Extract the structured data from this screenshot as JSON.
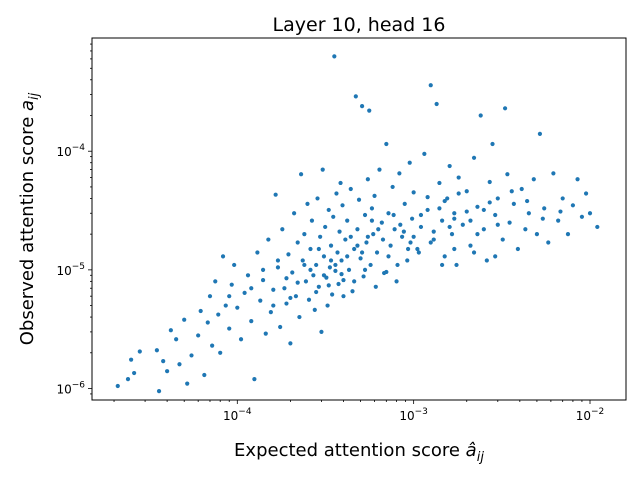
{
  "chart_data": {
    "type": "scatter",
    "title": "Layer 10, head 16",
    "xlabel": {
      "text": "Expected attention score ",
      "symbol": "â",
      "subscript": "ij"
    },
    "ylabel": {
      "text": "Observed attention score ",
      "symbol": "a",
      "subscript": "ij"
    },
    "xscale": "log",
    "yscale": "log",
    "xlim": [
      1.5e-05,
      0.016
    ],
    "ylim": [
      8e-07,
      0.0009
    ],
    "xticks": [
      {
        "value": 0.0001,
        "base": "10",
        "exp": "−4"
      },
      {
        "value": 0.001,
        "base": "10",
        "exp": "−3"
      },
      {
        "value": 0.01,
        "base": "10",
        "exp": "−2"
      }
    ],
    "yticks": [
      {
        "value": 1e-06,
        "base": "10",
        "exp": "−6"
      },
      {
        "value": 1e-05,
        "base": "10",
        "exp": "−5"
      },
      {
        "value": 0.0001,
        "base": "10",
        "exp": "−4"
      }
    ],
    "grid": false,
    "marker_color": "#1f77b4",
    "series": [
      {
        "points": [
          [
            2.1e-05,
            1.05e-06
          ],
          [
            2.4e-05,
            1.2e-06
          ],
          [
            2.5e-05,
            1.75e-06
          ],
          [
            2.6e-05,
            1.35e-06
          ],
          [
            2.8e-05,
            2.05e-06
          ],
          [
            3.5e-05,
            2.1e-06
          ],
          [
            3.6e-05,
            9.5e-07
          ],
          [
            3.8e-05,
            1.7e-06
          ],
          [
            4e-05,
            1.4e-06
          ],
          [
            4.2e-05,
            3.1e-06
          ],
          [
            4.5e-05,
            2.6e-06
          ],
          [
            4.7e-05,
            1.6e-06
          ],
          [
            5e-05,
            3.8e-06
          ],
          [
            5.2e-05,
            1.1e-06
          ],
          [
            5.5e-05,
            1.9e-06
          ],
          [
            6e-05,
            2.8e-06
          ],
          [
            6.2e-05,
            4.5e-06
          ],
          [
            6.5e-05,
            1.3e-06
          ],
          [
            6.8e-05,
            3.6e-06
          ],
          [
            7e-05,
            6e-06
          ],
          [
            7.2e-05,
            2.3e-06
          ],
          [
            7.5e-05,
            8e-06
          ],
          [
            7.8e-05,
            4.2e-06
          ],
          [
            8e-05,
            2e-06
          ],
          [
            8.3e-05,
            1.3e-05
          ],
          [
            8.6e-05,
            5e-06
          ],
          [
            9e-05,
            3.2e-06
          ],
          [
            9.3e-05,
            7.5e-06
          ],
          [
            9.6e-05,
            1.1e-05
          ],
          [
            0.0001,
            4.8e-06
          ],
          [
            0.000105,
            2.6e-06
          ],
          [
            0.00011,
            6.4e-06
          ],
          [
            0.000115,
            9e-06
          ],
          [
            0.00012,
            3.7e-06
          ],
          [
            0.000125,
            1.2e-06
          ],
          [
            0.00013,
            1.4e-05
          ],
          [
            0.000135,
            5.5e-06
          ],
          [
            0.00014,
            8.2e-06
          ],
          [
            0.000145,
            2.9e-06
          ],
          [
            0.00015,
            1.8e-05
          ],
          [
            0.000155,
            4.4e-06
          ],
          [
            0.00016,
            6.8e-06
          ],
          [
            0.000165,
            4.3e-05
          ],
          [
            0.00017,
            1.05e-05
          ],
          [
            0.000175,
            3.3e-06
          ],
          [
            0.00018,
            2.2e-05
          ],
          [
            0.000185,
            7e-06
          ],
          [
            0.00019,
            5.2e-06
          ],
          [
            0.000195,
            1.35e-05
          ],
          [
            0.0002,
            2.4e-06
          ],
          [
            0.000205,
            9.5e-06
          ],
          [
            0.00021,
            3e-05
          ],
          [
            0.000215,
            6e-06
          ],
          [
            0.00022,
            1.7e-05
          ],
          [
            0.000225,
            4e-06
          ],
          [
            0.00023,
            6.4e-05
          ],
          [
            0.000235,
            1.2e-05
          ],
          [
            0.00024,
            2e-05
          ],
          [
            0.000245,
            8e-06
          ],
          [
            0.00025,
            3.6e-05
          ],
          [
            0.000255,
            5.6e-06
          ],
          [
            0.00026,
            1.5e-05
          ],
          [
            0.000265,
            2.6e-05
          ],
          [
            0.00027,
            9e-06
          ],
          [
            0.000275,
            4.6e-06
          ],
          [
            0.00028,
            1.1e-05
          ],
          [
            0.000285,
            4e-05
          ],
          [
            0.00029,
            7.2e-06
          ],
          [
            0.000295,
            1.9e-05
          ],
          [
            0.0003,
            3e-06
          ],
          [
            0.000305,
            7e-05
          ],
          [
            0.00031,
            1.3e-05
          ],
          [
            0.000315,
            2.3e-05
          ],
          [
            0.00032,
            8.6e-06
          ],
          [
            0.000325,
            5e-06
          ],
          [
            0.00033,
            3.2e-05
          ],
          [
            0.000335,
            1.05e-05
          ],
          [
            0.00034,
            1.6e-05
          ],
          [
            0.000345,
            6.2e-06
          ],
          [
            0.00035,
            2.8e-05
          ],
          [
            0.000355,
            0.00063
          ],
          [
            0.00036,
            9.8e-06
          ],
          [
            0.000365,
            4.4e-05
          ],
          [
            0.00037,
            1.4e-05
          ],
          [
            0.000375,
            7.6e-06
          ],
          [
            0.00038,
            2.1e-05
          ],
          [
            0.000385,
            5.4e-05
          ],
          [
            0.00039,
            1.2e-05
          ],
          [
            0.000395,
            3.5e-05
          ],
          [
            0.0004,
            8.2e-06
          ],
          [
            0.00041,
            1.8e-05
          ],
          [
            0.00042,
            2.6e-05
          ],
          [
            0.00043,
            1e-05
          ],
          [
            0.00044,
            4.8e-05
          ],
          [
            0.00045,
            6.6e-06
          ],
          [
            0.00046,
            1.5e-05
          ],
          [
            0.00047,
            0.00029
          ],
          [
            0.00048,
            2.2e-05
          ],
          [
            0.00049,
            3.9e-05
          ],
          [
            0.0005,
            1.25e-05
          ],
          [
            0.00051,
            0.00024
          ],
          [
            0.00052,
            8.8e-06
          ],
          [
            0.00053,
            2.9e-05
          ],
          [
            0.00054,
            1.7e-05
          ],
          [
            0.00055,
            5.8e-05
          ],
          [
            0.00056,
            0.00022
          ],
          [
            0.00057,
            1.1e-05
          ],
          [
            0.00058,
            3.3e-05
          ],
          [
            0.00059,
            2e-05
          ],
          [
            0.0006,
            4.2e-05
          ],
          [
            0.00062,
            1.4e-05
          ],
          [
            0.00064,
            7e-05
          ],
          [
            0.00066,
            2.5e-05
          ],
          [
            0.00068,
            9.4e-06
          ],
          [
            0.0007,
            0.000115
          ],
          [
            0.00072,
            3e-05
          ],
          [
            0.00074,
            1.6e-05
          ],
          [
            0.00076,
            5e-05
          ],
          [
            0.00078,
            2.2e-05
          ],
          [
            0.0008,
            8e-06
          ],
          [
            0.00083,
            6.5e-05
          ],
          [
            0.00086,
            1.9e-05
          ],
          [
            0.00089,
            3.6e-05
          ],
          [
            0.00092,
            1.2e-05
          ],
          [
            0.00095,
            8e-05
          ],
          [
            0.00098,
            2.7e-05
          ],
          [
            0.001,
            4.5e-05
          ],
          [
            0.00105,
            1.5e-05
          ],
          [
            0.0011,
            2.3e-05
          ],
          [
            0.00115,
            9.5e-05
          ],
          [
            0.0012,
            3.2e-05
          ],
          [
            0.00125,
            0.00036
          ],
          [
            0.0013,
            1.8e-05
          ],
          [
            0.00135,
            0.00025
          ],
          [
            0.0014,
            5.4e-05
          ],
          [
            0.00145,
            2.6e-05
          ],
          [
            0.0015,
            1.3e-05
          ],
          [
            0.00155,
            4e-05
          ],
          [
            0.0016,
            7.5e-05
          ],
          [
            0.00165,
            2e-05
          ],
          [
            0.0017,
            3e-05
          ],
          [
            0.00175,
            1.1e-05
          ],
          [
            0.0018,
            6e-05
          ],
          [
            0.0019,
            2.4e-05
          ],
          [
            0.002,
            4.6e-05
          ],
          [
            0.0021,
            1.6e-05
          ],
          [
            0.0022,
            8.8e-05
          ],
          [
            0.0023,
            3.4e-05
          ],
          [
            0.0024,
            0.0002
          ],
          [
            0.0025,
            2.2e-05
          ],
          [
            0.0026,
            1.2e-05
          ],
          [
            0.0027,
            5.5e-05
          ],
          [
            0.0028,
            0.000115
          ],
          [
            0.0029,
            2.9e-05
          ],
          [
            0.003,
            4e-05
          ],
          [
            0.0032,
            1.8e-05
          ],
          [
            0.0033,
            0.00023
          ],
          [
            0.0034,
            6.4e-05
          ],
          [
            0.0035,
            2.5e-05
          ],
          [
            0.0037,
            3.6e-05
          ],
          [
            0.0039,
            1.5e-05
          ],
          [
            0.0041,
            4.8e-05
          ],
          [
            0.0043,
            2.2e-05
          ],
          [
            0.0045,
            3e-05
          ],
          [
            0.0048,
            5.8e-05
          ],
          [
            0.005,
            2e-05
          ],
          [
            0.0052,
            0.00014
          ],
          [
            0.0055,
            3.3e-05
          ],
          [
            0.0058,
            1.7e-05
          ],
          [
            0.0062,
            6.5e-05
          ],
          [
            0.0066,
            2.6e-05
          ],
          [
            0.007,
            4e-05
          ],
          [
            0.0075,
            2e-05
          ],
          [
            0.008,
            3.5e-05
          ],
          [
            0.0085,
            5.8e-05
          ],
          [
            0.009,
            2.8e-05
          ],
          [
            0.0095,
            4.4e-05
          ],
          [
            0.01,
            3e-05
          ],
          [
            0.011,
            2.3e-05
          ],
          [
            0.00022,
            7.8e-06
          ],
          [
            0.00026,
            1e-05
          ],
          [
            0.00031,
            9e-06
          ],
          [
            0.00036,
            1.1e-05
          ],
          [
            0.00042,
            1.3e-05
          ],
          [
            0.00048,
            1.6e-05
          ],
          [
            0.00055,
            1.9e-05
          ],
          [
            0.00063,
            2.2e-05
          ],
          [
            0.00072,
            1.3e-05
          ],
          [
            0.00084,
            2.4e-05
          ],
          [
            0.00096,
            1.7e-05
          ],
          [
            0.0011,
            2.9e-05
          ],
          [
            0.0013,
            2.1e-05
          ],
          [
            0.0015,
            3.8e-05
          ],
          [
            0.0017,
            2.7e-05
          ],
          [
            0.002,
            3.1e-05
          ],
          [
            0.0023,
            2e-05
          ],
          [
            0.0027,
            3.7e-05
          ],
          [
            0.00012,
            7e-06
          ],
          [
            0.00014,
            1e-05
          ],
          [
            0.00017,
            1.2e-05
          ],
          [
            0.00019,
            8.5e-06
          ],
          [
            0.00024,
            1.1e-05
          ],
          [
            0.00029,
            1.5e-05
          ],
          [
            0.00034,
            1.2e-05
          ],
          [
            0.00039,
            9.2e-06
          ],
          [
            0.00044,
            1.9e-05
          ],
          [
            0.00051,
            1.4e-05
          ],
          [
            0.00058,
            2.6e-05
          ],
          [
            0.00067,
            1.8e-05
          ],
          [
            0.00077,
            2.9e-05
          ],
          [
            0.00088,
            2.1e-05
          ],
          [
            0.001,
            1.9e-05
          ],
          [
            0.0012,
            4.1e-05
          ],
          [
            0.0014,
            3.3e-05
          ],
          [
            0.0016,
            2.3e-05
          ],
          [
            0.0018,
            4.4e-05
          ],
          [
            0.0021,
            2.6e-05
          ],
          [
            0.0025,
            3.2e-05
          ],
          [
            0.003,
            2.4e-05
          ],
          [
            0.0036,
            4.6e-05
          ],
          [
            0.0044,
            3.8e-05
          ],
          [
            0.0054,
            2.7e-05
          ],
          [
            0.0068,
            3.1e-05
          ],
          [
            9e-05,
            6e-06
          ],
          [
            0.00016,
            5e-06
          ],
          [
            0.0002,
            5.8e-06
          ],
          [
            0.00028,
            6.5e-06
          ],
          [
            0.00033,
            7.4e-06
          ],
          [
            0.0004,
            6e-06
          ],
          [
            0.00046,
            8e-06
          ],
          [
            0.00053,
            1e-05
          ],
          [
            0.00061,
            7.2e-06
          ],
          [
            0.0007,
            9.6e-06
          ],
          [
            0.00081,
            1.1e-05
          ],
          [
            0.00093,
            1.5e-05
          ],
          [
            0.00107,
            1.4e-05
          ],
          [
            0.00125,
            1.7e-05
          ],
          [
            0.00145,
            1.1e-05
          ],
          [
            0.0017,
            1.5e-05
          ],
          [
            0.0022,
            1.4e-05
          ],
          [
            0.0029,
            1.3e-05
          ]
        ]
      }
    ]
  }
}
